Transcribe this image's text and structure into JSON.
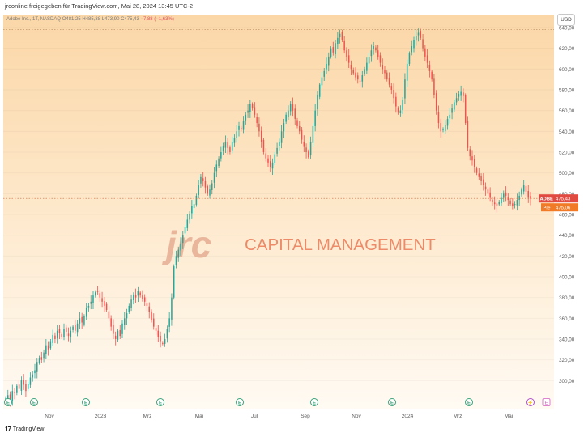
{
  "header": {
    "author": "jrconline freigegeben für TradingView.com, Mai 28, 2024 13:45 UTC-2"
  },
  "legend": {
    "symbol": "Adobe Inc., 1T, NASDAQ",
    "ohlc": "O481,25 H485,38 L473,90 C475,43",
    "change": "−7,88 (−1,63%)"
  },
  "currency": "USD",
  "watermark": {
    "logo": "jrc",
    "text": "CAPITAL MANAGEMENT"
  },
  "footer": {
    "brand": "TradingView"
  },
  "price_labels": {
    "last": {
      "name": "ADBE",
      "value": "475,43"
    },
    "pre": {
      "name": "Pre",
      "value": "475,06"
    }
  },
  "colors": {
    "up": "#26a69a",
    "down": "#ef5350",
    "accent": "#e05a3a",
    "watermark": "#e8734f"
  },
  "chart_data": {
    "type": "candlestick",
    "title": "Adobe Inc., 1T, NASDAQ",
    "ylim": [
      280,
      640
    ],
    "yticks": [
      300,
      320,
      340,
      360,
      380,
      400,
      420,
      440,
      460,
      480,
      500,
      520,
      540,
      560,
      580,
      600,
      620,
      640
    ],
    "ytick_labels": [
      "300,00",
      "320,00",
      "340,00",
      "360,00",
      "380,00",
      "400,00",
      "420,00",
      "440,00",
      "460,00",
      "480,00",
      "500,00",
      "520,00",
      "540,00",
      "560,00",
      "580,00",
      "600,00",
      "620,00",
      "640,00"
    ],
    "xtick_labels": [
      "Nov",
      "2023",
      "Mrz",
      "Mai",
      "Jul",
      "Sep",
      "Nov",
      "2024",
      "Mrz",
      "Mai"
    ],
    "last_price": 475.43,
    "pre_price": 475.06,
    "high_line": 638,
    "earnings_markers": [
      "E",
      "E",
      "E",
      "E",
      "E",
      "E",
      "E",
      "E",
      "E"
    ],
    "dividend_markers": [
      "⚡"
    ],
    "other_markers": [
      "E"
    ],
    "series": [
      {
        "name": "close",
        "values": [
          283,
          286,
          279,
          290,
          288,
          295,
          292,
          301,
          296,
          290,
          297,
          303,
          306,
          310,
          318,
          322,
          320,
          327,
          334,
          330,
          338,
          344,
          340,
          348,
          346,
          342,
          350,
          347,
          343,
          348,
          352,
          348,
          355,
          360,
          356,
          362,
          370,
          372,
          376,
          382,
          385,
          386,
          380,
          376,
          372,
          368,
          360,
          352,
          345,
          340,
          348,
          343,
          355,
          360,
          365,
          372,
          378,
          382,
          380,
          386,
          382,
          379,
          376,
          372,
          366,
          358,
          352,
          348,
          342,
          338,
          336,
          340,
          350,
          360,
          380,
          410,
          420,
          426,
          432,
          440,
          448,
          455,
          460,
          468,
          470,
          478,
          488,
          496,
          492,
          486,
          480,
          484,
          490,
          500,
          508,
          514,
          520,
          526,
          530,
          524,
          520,
          530,
          534,
          540,
          545,
          542,
          550,
          556,
          560,
          566,
          562,
          556,
          548,
          540,
          530,
          520,
          514,
          510,
          506,
          510,
          518,
          524,
          530,
          540,
          548,
          556,
          560,
          566,
          560,
          552,
          545,
          540,
          532,
          525,
          520,
          515,
          530,
          545,
          560,
          575,
          585,
          592,
          598,
          605,
          612,
          620,
          616,
          625,
          630,
          634,
          628,
          618,
          612,
          606,
          600,
          596,
          592,
          590,
          588,
          594,
          600,
          606,
          612,
          618,
          622,
          618,
          612,
          606,
          600,
          596,
          590,
          585,
          580,
          572,
          564,
          558,
          560,
          570,
          590,
          605,
          615,
          622,
          628,
          632,
          635,
          630,
          620,
          612,
          606,
          598,
          590,
          575,
          560,
          548,
          540,
          542,
          546,
          552,
          556,
          562,
          568,
          572,
          576,
          578,
          574,
          548,
          524,
          516,
          512,
          506,
          500,
          496,
          492,
          488,
          484,
          480,
          476,
          472,
          470,
          468,
          472,
          476,
          480,
          478,
          474,
          470,
          468,
          470,
          474,
          478,
          484,
          488,
          482,
          476,
          475
        ]
      }
    ]
  }
}
